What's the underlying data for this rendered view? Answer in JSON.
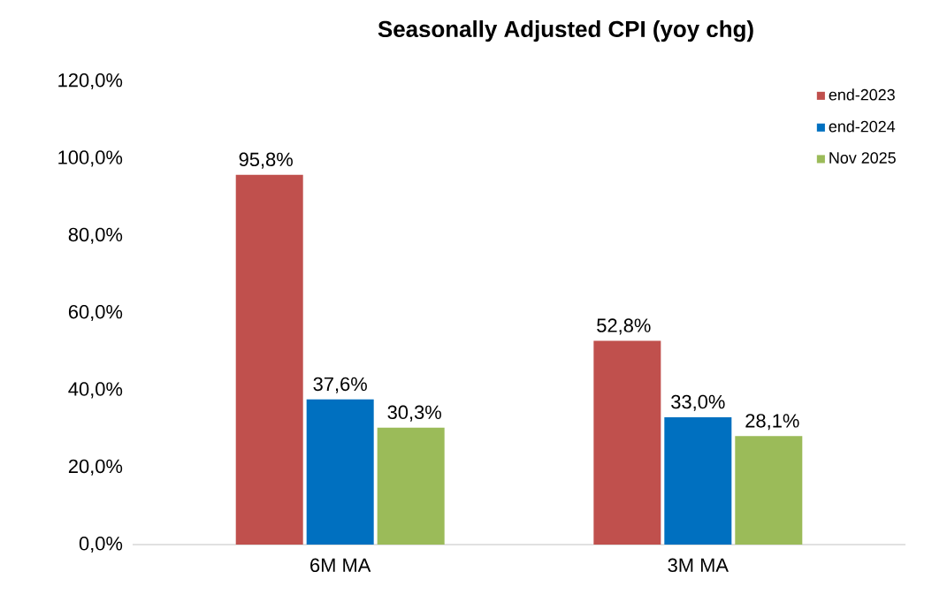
{
  "chart_data": {
    "type": "bar",
    "title": "Seasonally Adjusted CPI (yoy chg)",
    "categories": [
      "6M MA",
      "3M MA"
    ],
    "series": [
      {
        "name": "end-2023",
        "color": "#c0504d",
        "values": [
          95.8,
          52.8
        ],
        "value_labels": [
          "95,8%",
          "52,8%"
        ]
      },
      {
        "name": "end-2024",
        "color": "#0070c0",
        "values": [
          37.6,
          33.0
        ],
        "value_labels": [
          "37,6%",
          "33,0%"
        ]
      },
      {
        "name": "Nov 2025",
        "color": "#9bbb59",
        "values": [
          30.3,
          28.1
        ],
        "value_labels": [
          "30,3%",
          "28,1%"
        ]
      }
    ],
    "ylim": [
      0,
      120
    ],
    "yticks": [
      {
        "value": 0,
        "label": "0,0%"
      },
      {
        "value": 20,
        "label": "20,0%"
      },
      {
        "value": 40,
        "label": "40,0%"
      },
      {
        "value": 60,
        "label": "60,0%"
      },
      {
        "value": 80,
        "label": "80,0%"
      },
      {
        "value": 100,
        "label": "100,0%"
      },
      {
        "value": 120,
        "label": "120,0%"
      }
    ],
    "legend": "top right"
  }
}
